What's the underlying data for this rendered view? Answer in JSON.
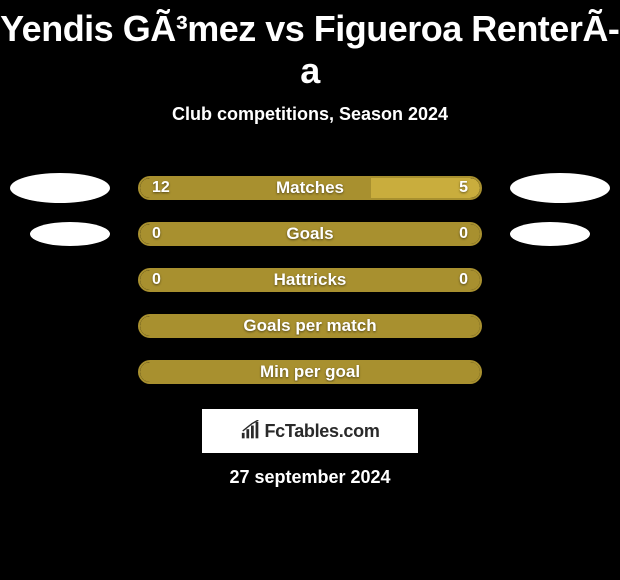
{
  "title": "Yendis GÃ³mez vs Figueroa RenterÃ­a",
  "subtitle": "Club competitions, Season 2024",
  "date": "27 september 2024",
  "footer_brand": "FcTables.com",
  "colors": {
    "background": "#000000",
    "bar_border": "#a8902f",
    "bar_fill_left": "#a8902f",
    "bar_fill_right": "#c9ad3d",
    "text": "#ffffff",
    "ellipse": "#ffffff"
  },
  "stats": [
    {
      "label": "Matches",
      "left_value": "12",
      "right_value": "5",
      "left_pct": 68,
      "right_pct": 32,
      "show_left_ellipse": true,
      "show_right_ellipse": true
    },
    {
      "label": "Goals",
      "left_value": "0",
      "right_value": "0",
      "left_pct": 100,
      "right_pct": 0,
      "show_left_ellipse": true,
      "show_right_ellipse": true
    },
    {
      "label": "Hattricks",
      "left_value": "0",
      "right_value": "0",
      "left_pct": 100,
      "right_pct": 0,
      "show_left_ellipse": false,
      "show_right_ellipse": false
    },
    {
      "label": "Goals per match",
      "left_value": "",
      "right_value": "",
      "left_pct": 100,
      "right_pct": 0,
      "show_left_ellipse": false,
      "show_right_ellipse": false
    },
    {
      "label": "Min per goal",
      "left_value": "",
      "right_value": "",
      "left_pct": 100,
      "right_pct": 0,
      "show_left_ellipse": false,
      "show_right_ellipse": false
    }
  ]
}
